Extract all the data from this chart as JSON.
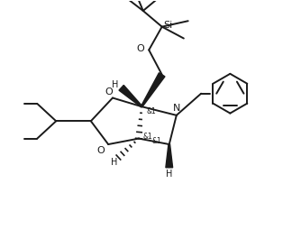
{
  "bg_color": "#ffffff",
  "line_color": "#1a1a1a",
  "line_width": 1.4,
  "font_size": 7.5,
  "figsize": [
    3.24,
    2.75
  ],
  "dpi": 100,
  "xlim": [
    0,
    10
  ],
  "ylim": [
    0,
    8.5
  ]
}
